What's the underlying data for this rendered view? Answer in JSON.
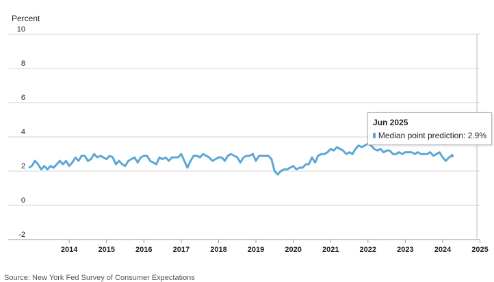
{
  "chart_data": {
    "type": "line",
    "ylabel": "Percent",
    "ylim": [
      -2,
      10
    ],
    "yticks": [
      10,
      8,
      6,
      4,
      2,
      0,
      -2
    ],
    "xticks": [
      "2014",
      "2015",
      "2016",
      "2017",
      "2018",
      "2019",
      "2020",
      "2021",
      "2022",
      "2023",
      "2024",
      "2025"
    ],
    "x_start": "2013-06",
    "x_end": "2025-06",
    "grid": true,
    "legend": "none",
    "series": [
      {
        "name": "Median point prediction",
        "color": "#5ba7d6",
        "values": [
          2.2,
          2.3,
          2.6,
          2.4,
          2.1,
          2.3,
          2.1,
          2.3,
          2.2,
          2.4,
          2.6,
          2.4,
          2.6,
          2.3,
          2.5,
          2.8,
          2.6,
          2.9,
          2.9,
          2.6,
          2.7,
          3.0,
          2.8,
          2.9,
          2.8,
          2.7,
          2.9,
          2.8,
          2.4,
          2.6,
          2.4,
          2.3,
          2.6,
          2.7,
          2.8,
          2.5,
          2.8,
          2.9,
          2.9,
          2.6,
          2.5,
          2.4,
          2.8,
          2.7,
          2.8,
          2.6,
          2.8,
          2.8,
          2.8,
          3.0,
          2.6,
          2.2,
          2.6,
          2.9,
          2.9,
          2.8,
          3.0,
          2.9,
          2.8,
          2.6,
          2.7,
          2.8,
          2.8,
          2.6,
          2.9,
          3.0,
          2.9,
          2.8,
          2.5,
          2.8,
          2.9,
          2.9,
          3.0,
          2.6,
          2.9,
          2.9,
          2.9,
          2.9,
          2.7,
          2.0,
          1.8,
          2.0,
          2.1,
          2.1,
          2.2,
          2.3,
          2.1,
          2.2,
          2.2,
          2.4,
          2.4,
          2.8,
          2.5,
          2.9,
          3.0,
          3.0,
          3.1,
          3.3,
          3.2,
          3.4,
          3.3,
          3.2,
          3.0,
          3.1,
          3.0,
          3.3,
          3.5,
          3.4,
          3.5,
          3.6,
          3.5,
          3.3,
          3.2,
          3.3,
          3.1,
          3.2,
          3.2,
          3.0,
          3.0,
          3.1,
          3.0,
          3.1,
          3.1,
          3.1,
          3.0,
          3.1,
          3.0,
          3.0,
          3.0,
          3.1,
          2.9,
          3.0,
          3.1,
          2.8,
          2.6,
          2.8,
          2.9
        ]
      }
    ],
    "tooltip": {
      "title": "Jun 2025",
      "label": "Median point prediction: 2.9%"
    },
    "source": "Source: New York Fed Survey of Consumer Expectations"
  }
}
